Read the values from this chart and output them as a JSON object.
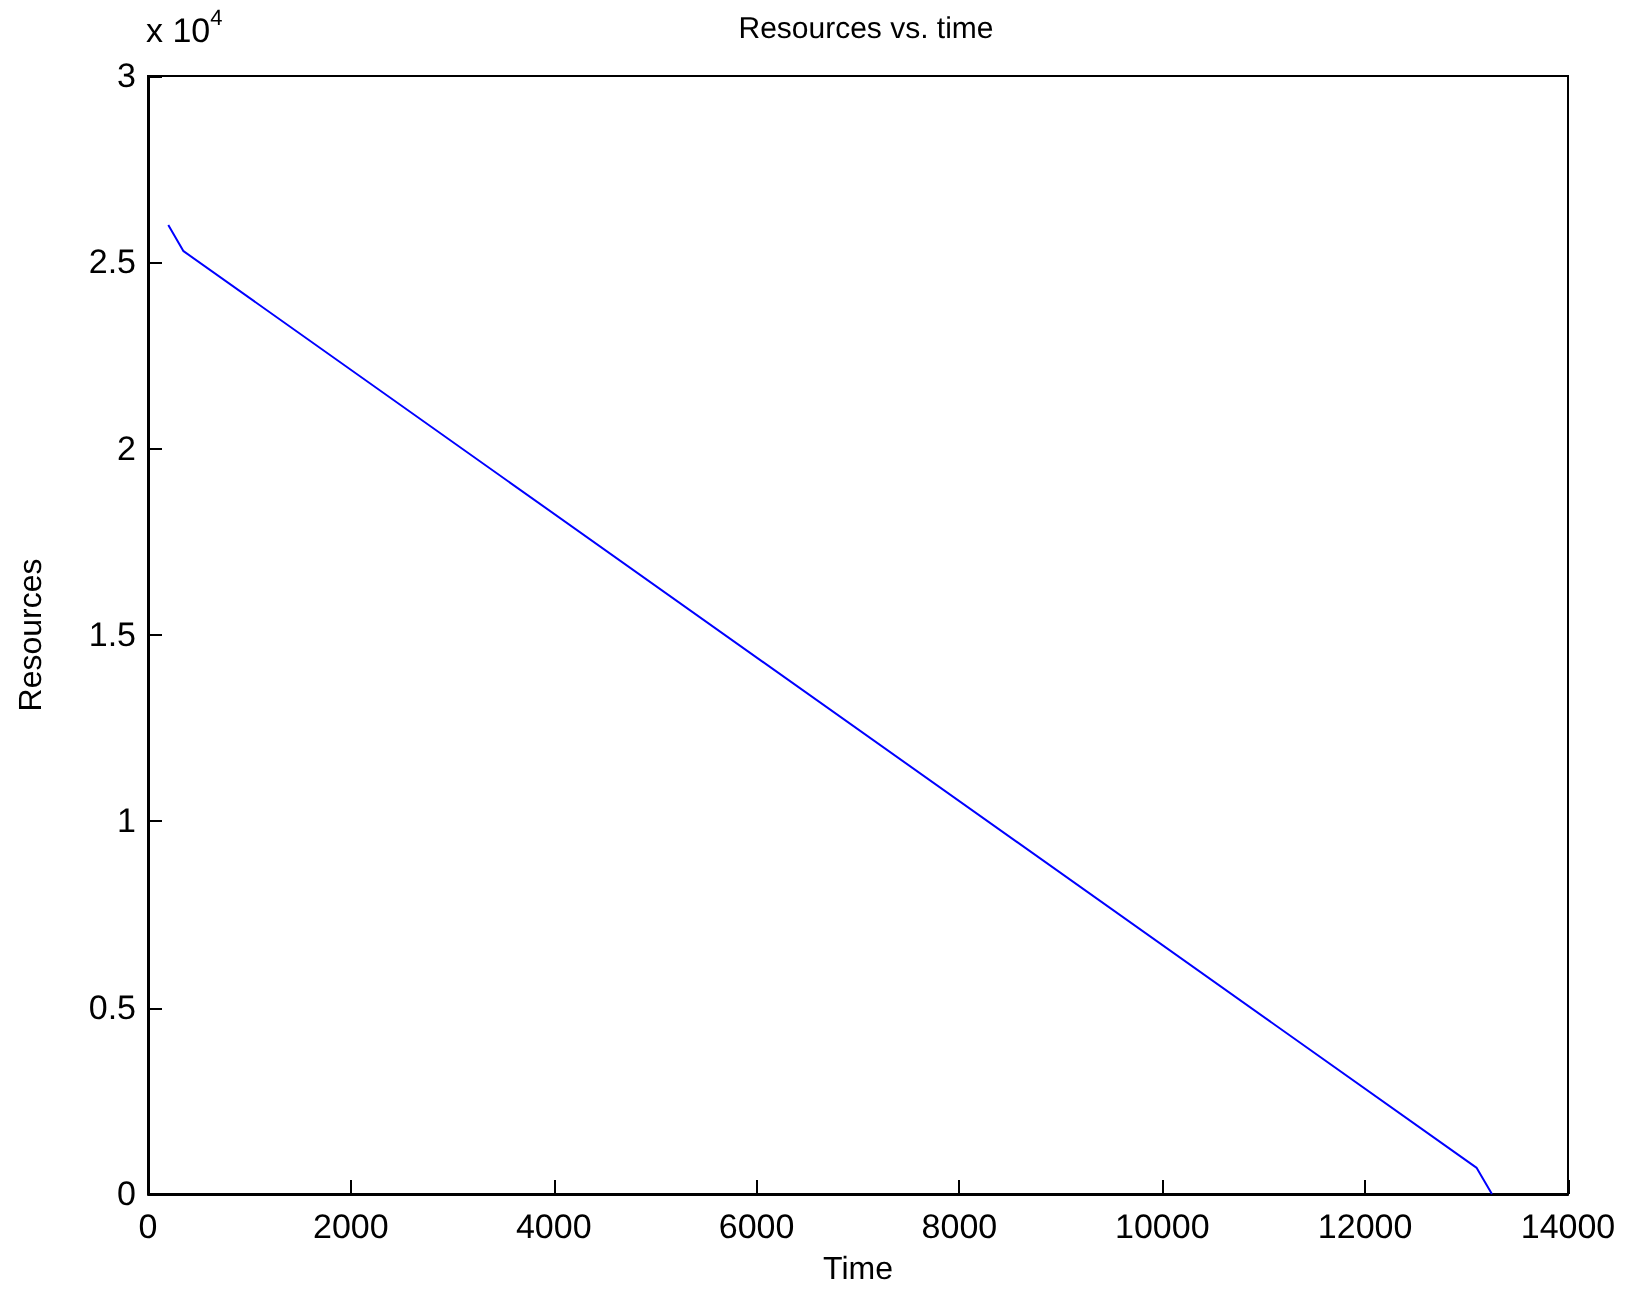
{
  "chart_data": {
    "type": "line",
    "title": "Resources vs. time",
    "xlabel": "Time",
    "ylabel": "Resources",
    "x": [
      200,
      350,
      13100,
      13250
    ],
    "series": [
      {
        "color": "#0000ff",
        "values": [
          2.6,
          2.53,
          0.07,
          0
        ]
      }
    ],
    "xlim": [
      0,
      14000
    ],
    "xticks": [
      0,
      2000,
      4000,
      6000,
      8000,
      10000,
      12000,
      14000
    ],
    "ylim": [
      0,
      3
    ],
    "yticks": [
      0,
      0.5,
      1,
      1.5,
      2,
      2.5,
      3
    ],
    "annotations": [
      "x 10$^{4}$"
    ],
    "grid": false,
    "marker": "none",
    "line_style": "solid"
  }
}
